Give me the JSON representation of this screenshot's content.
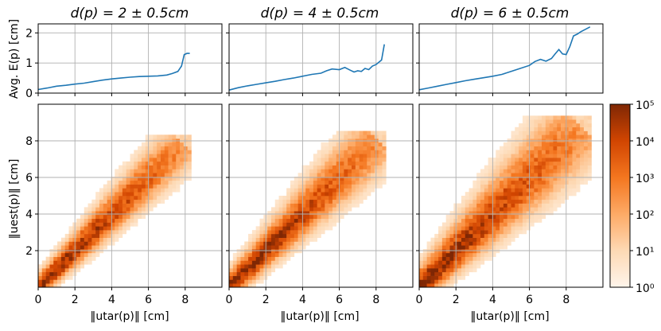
{
  "chart_data": [
    {
      "type": "line",
      "panel": "top-left",
      "title": "d(p) = 2 ± 0.5cm",
      "ylabel": "Avg. E(p) [cm]",
      "xlim": [
        0,
        10
      ],
      "ylim": [
        0,
        2.3
      ],
      "yticks": [
        0,
        1,
        2
      ],
      "x": [
        0,
        0.5,
        1,
        1.5,
        2,
        2.5,
        3,
        3.5,
        4,
        4.5,
        5,
        5.5,
        6,
        6.5,
        7,
        7.3,
        7.6,
        7.8,
        7.95,
        8.1,
        8.25
      ],
      "y": [
        0.12,
        0.17,
        0.23,
        0.26,
        0.3,
        0.33,
        0.38,
        0.43,
        0.47,
        0.5,
        0.53,
        0.55,
        0.56,
        0.57,
        0.6,
        0.65,
        0.72,
        0.9,
        1.28,
        1.32,
        1.32
      ]
    },
    {
      "type": "line",
      "panel": "top-middle",
      "title": "d(p) = 4 ± 0.5cm",
      "xlim": [
        0,
        10
      ],
      "ylim": [
        0,
        2.3
      ],
      "x": [
        0,
        0.5,
        1,
        1.5,
        2,
        2.5,
        3,
        3.5,
        4,
        4.5,
        5,
        5.3,
        5.6,
        6,
        6.3,
        6.6,
        6.8,
        7,
        7.2,
        7.4,
        7.6,
        7.8,
        8,
        8.3,
        8.45
      ],
      "y": [
        0.1,
        0.18,
        0.24,
        0.29,
        0.34,
        0.39,
        0.45,
        0.5,
        0.56,
        0.62,
        0.66,
        0.74,
        0.8,
        0.78,
        0.85,
        0.76,
        0.7,
        0.74,
        0.72,
        0.82,
        0.78,
        0.9,
        0.95,
        1.1,
        1.62
      ]
    },
    {
      "type": "line",
      "panel": "top-right",
      "title": "d(p) = 6 ± 0.5cm",
      "xlim": [
        0,
        10
      ],
      "ylim": [
        0,
        2.3
      ],
      "x": [
        0,
        0.5,
        1,
        1.5,
        2,
        2.5,
        3,
        3.5,
        4,
        4.5,
        5,
        5.5,
        6,
        6.3,
        6.6,
        6.9,
        7.2,
        7.4,
        7.6,
        7.8,
        8,
        8.2,
        8.4,
        8.6,
        8.8,
        9.05,
        9.3
      ],
      "y": [
        0.11,
        0.17,
        0.23,
        0.29,
        0.35,
        0.41,
        0.46,
        0.51,
        0.56,
        0.62,
        0.72,
        0.82,
        0.92,
        1.05,
        1.12,
        1.06,
        1.15,
        1.3,
        1.45,
        1.3,
        1.28,
        1.55,
        1.9,
        1.96,
        2.04,
        2.12,
        2.2
      ]
    },
    {
      "type": "heatmap",
      "panel": "bottom-left",
      "xlabel": "‖u_tar(p)‖ [cm]",
      "ylabel": "‖u_est(p)‖ [cm]",
      "xlim": [
        0,
        10
      ],
      "ylim": [
        0,
        10
      ],
      "xticks": [
        0,
        2,
        4,
        6,
        8
      ],
      "yticks": [
        2,
        4,
        6,
        8
      ],
      "extent": 8.1,
      "spread": 0.55,
      "color_scale": "log"
    },
    {
      "type": "heatmap",
      "panel": "bottom-middle",
      "xlabel": "‖u_tar(p)‖ [cm]",
      "xlim": [
        0,
        10
      ],
      "ylim": [
        0,
        10
      ],
      "xticks": [
        0,
        2,
        4,
        6,
        8
      ],
      "extent": 8.3,
      "spread": 0.65,
      "color_scale": "log"
    },
    {
      "type": "heatmap",
      "panel": "bottom-right",
      "xlabel": "‖u_tar(p)‖ [cm]",
      "xlim": [
        0,
        10
      ],
      "ylim": [
        0,
        10
      ],
      "xticks": [
        0,
        2,
        4,
        6,
        8
      ],
      "extent": 9.0,
      "spread": 0.8,
      "color_scale": "log"
    }
  ],
  "colorbar": {
    "scale": "log",
    "min_color": "#fff5eb",
    "max_color": "#7f2704",
    "labels": [
      "10⁰",
      "10¹",
      "10²",
      "10³",
      "10⁴",
      "10⁵"
    ]
  },
  "titles": {
    "t1": "d(p) = 2 ± 0.5cm",
    "t2": "d(p) = 4 ± 0.5cm",
    "t3": "d(p) = 6 ± 0.5cm"
  },
  "labels": {
    "top_ylabel": "Avg. E(p) [cm]",
    "bottom_ylabel": "‖uest(p)‖ [cm]",
    "xlabel": "‖utar(p)‖ [cm]"
  },
  "colors": {
    "line": "#1f77b4",
    "grid": "#b0b0b0"
  }
}
